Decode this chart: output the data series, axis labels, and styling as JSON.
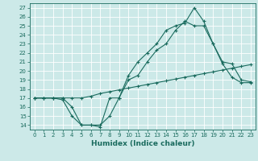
{
  "title": "",
  "xlabel": "Humidex (Indice chaleur)",
  "bg_color": "#cce9e8",
  "grid_color": "#ffffff",
  "line_color": "#1a6b5e",
  "xlim": [
    -0.5,
    23.5
  ],
  "ylim": [
    13.5,
    27.5
  ],
  "xticks": [
    0,
    1,
    2,
    3,
    4,
    5,
    6,
    7,
    8,
    9,
    10,
    11,
    12,
    13,
    14,
    15,
    16,
    17,
    18,
    19,
    20,
    21,
    22,
    23
  ],
  "yticks": [
    14,
    15,
    16,
    17,
    18,
    19,
    20,
    21,
    22,
    23,
    24,
    25,
    26,
    27
  ],
  "line1_x": [
    0,
    1,
    2,
    3,
    4,
    5,
    6,
    7,
    8,
    9,
    10,
    11,
    12,
    13,
    14,
    15,
    16,
    17,
    18,
    19,
    20,
    21,
    22,
    23
  ],
  "line1_y": [
    17,
    17,
    17,
    17,
    16,
    14,
    14,
    13.8,
    17,
    17,
    19.5,
    21,
    22,
    23,
    24.5,
    25,
    25.3,
    27,
    25.5,
    23,
    20.8,
    19.3,
    18.7,
    18.7
  ],
  "line2_x": [
    0,
    1,
    2,
    3,
    4,
    5,
    6,
    7,
    8,
    9,
    10,
    11,
    12,
    13,
    14,
    15,
    16,
    17,
    18,
    19,
    20,
    21,
    22,
    23
  ],
  "line2_y": [
    17,
    17,
    17,
    16.8,
    15,
    14,
    14,
    14,
    15,
    17,
    19,
    19.5,
    21,
    22.3,
    23,
    24.5,
    25.5,
    25,
    25,
    23,
    21,
    20.8,
    19,
    18.8
  ],
  "line3_x": [
    0,
    1,
    2,
    3,
    4,
    5,
    6,
    7,
    8,
    9,
    10,
    11,
    12,
    13,
    14,
    15,
    16,
    17,
    18,
    19,
    20,
    21,
    22,
    23
  ],
  "line3_y": [
    17,
    17,
    17,
    17,
    17,
    17,
    17.2,
    17.5,
    17.7,
    17.9,
    18.1,
    18.3,
    18.5,
    18.7,
    18.9,
    19.1,
    19.3,
    19.5,
    19.7,
    19.9,
    20.1,
    20.3,
    20.5,
    20.7
  ]
}
